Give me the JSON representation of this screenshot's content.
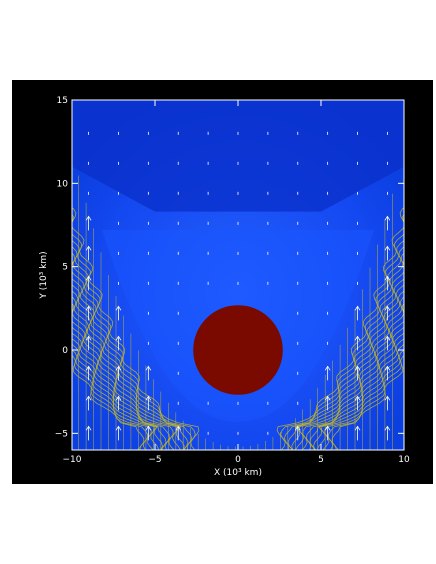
{
  "chart_data": {
    "type": "contour",
    "xlabel": "X (10³ km)",
    "ylabel": "Y (10³ km)",
    "xlim": [
      -10,
      10
    ],
    "ylim": [
      -6,
      15
    ],
    "xticks": [
      {
        "value": -10,
        "label": "−10"
      },
      {
        "value": -5,
        "label": "−5"
      },
      {
        "value": 0,
        "label": "0"
      },
      {
        "value": 5,
        "label": "5"
      },
      {
        "value": 10,
        "label": "10"
      }
    ],
    "yticks": [
      {
        "value": -5,
        "label": "−5"
      },
      {
        "value": 0,
        "label": "0"
      },
      {
        "value": 5,
        "label": "5"
      },
      {
        "value": 10,
        "label": "10"
      },
      {
        "value": 15,
        "label": "15"
      }
    ],
    "obstacle": {
      "center": [
        0,
        0
      ],
      "radius": 2.7,
      "color": "#7a0a00"
    },
    "field_colors": {
      "background": "#0b3fe0",
      "upper_region": "#0a2fc8",
      "inner_region": "#1a55ff",
      "contour": "#b8b030",
      "vector": "#ffffff",
      "frame": "#000000"
    }
  }
}
